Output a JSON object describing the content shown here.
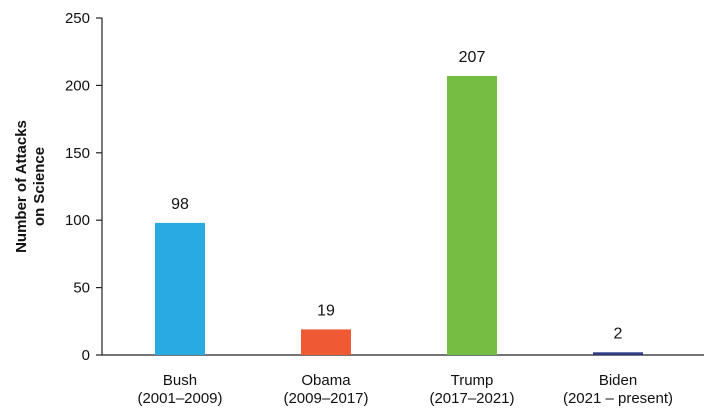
{
  "chart_data": {
    "type": "bar",
    "title": "",
    "xlabel": "",
    "ylabel": [
      "Number of Attacks",
      "on Science"
    ],
    "ylim": [
      0,
      250
    ],
    "yticks": [
      0,
      50,
      100,
      150,
      200,
      250
    ],
    "grid": false,
    "legend": "none",
    "categories": [
      {
        "name": "Bush",
        "range": "(2001–2009)"
      },
      {
        "name": "Obama",
        "range": "(2009–2017)"
      },
      {
        "name": "Trump",
        "range": "(2017–2021)"
      },
      {
        "name": "Biden",
        "range": "(2021 – present)"
      }
    ],
    "values": [
      98,
      19,
      207,
      2
    ],
    "colors": [
      "#29abe2",
      "#ef5a35",
      "#76bd43",
      "#2e3a84"
    ]
  }
}
